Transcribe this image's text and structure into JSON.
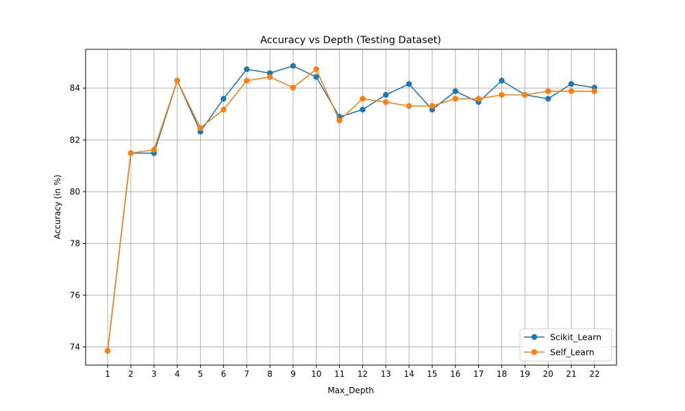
{
  "chart_data": {
    "type": "line",
    "title": "Accuracy vs Depth (Testing Dataset)",
    "xlabel": "Max_Depth",
    "ylabel": "Accuracy (in %)",
    "x": [
      1,
      2,
      3,
      4,
      5,
      6,
      7,
      8,
      9,
      10,
      11,
      12,
      13,
      14,
      15,
      16,
      17,
      18,
      19,
      20,
      21,
      22
    ],
    "xlim": [
      0.05,
      22.95
    ],
    "ylim": [
      73.3,
      85.5
    ],
    "yticks": [
      74,
      76,
      78,
      80,
      82,
      84
    ],
    "grid": true,
    "legend_position": "lower-right",
    "series": [
      {
        "name": "Scikit_Learn",
        "color": "#1f77b4",
        "values": [
          73.85,
          81.49,
          81.49,
          84.29,
          82.32,
          83.59,
          84.73,
          84.58,
          84.86,
          84.43,
          82.89,
          83.17,
          83.74,
          84.16,
          83.17,
          83.88,
          83.46,
          84.29,
          83.74,
          83.59,
          84.16,
          84.02
        ]
      },
      {
        "name": "Self_Learn",
        "color": "#ff7f0e",
        "values": [
          73.85,
          81.49,
          81.62,
          84.29,
          82.46,
          83.17,
          84.29,
          84.43,
          84.02,
          84.73,
          82.75,
          83.59,
          83.46,
          83.31,
          83.31,
          83.59,
          83.59,
          83.74,
          83.74,
          83.88,
          83.88,
          83.88
        ]
      }
    ]
  }
}
